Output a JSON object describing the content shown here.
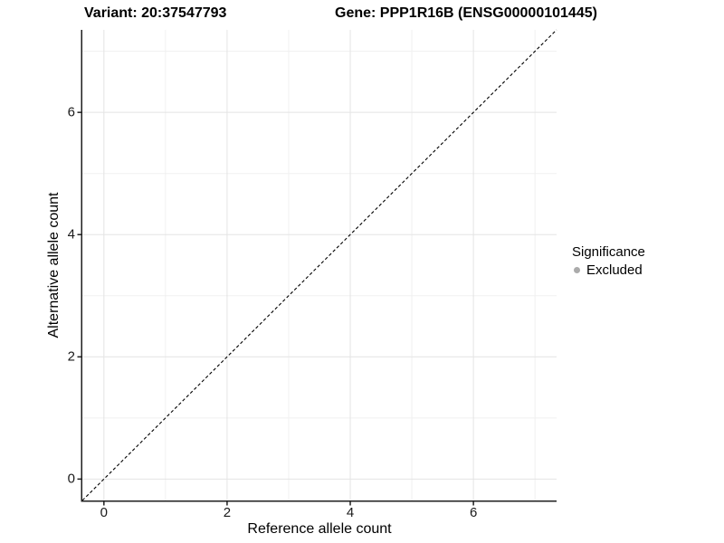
{
  "chart_data": {
    "type": "scatter",
    "title_left": "Variant: 20:37547793",
    "title_right": "Gene: PPP1R16B (ENSG00000101445)",
    "xlabel": "Reference allele count",
    "ylabel": "Alternative allele count",
    "xlim": [
      -0.35,
      7.35
    ],
    "ylim": [
      -0.35,
      7.35
    ],
    "x_major_breaks": [
      0,
      2,
      4,
      6
    ],
    "x_minor_breaks": [
      1,
      3,
      5,
      7
    ],
    "y_major_breaks": [
      0,
      2,
      4,
      6
    ],
    "y_minor_breaks": [
      1,
      3,
      5,
      7
    ],
    "points": [],
    "identity_line": {
      "style": "dashed",
      "color": "#000000",
      "from": [
        -0.35,
        -0.35
      ],
      "to": [
        7.35,
        7.35
      ]
    },
    "grid": {
      "major_color": "#E4E4E4",
      "minor_color": "#F0F0F0",
      "background": "#FFFFFF"
    },
    "axis_color": "#1F1F1F",
    "tick_label_color": "#1A1A1A",
    "legend": {
      "title": "Significance",
      "position": "right",
      "items": [
        {
          "label": "Excluded",
          "marker": "circle",
          "color": "#ABABAB"
        }
      ]
    }
  }
}
